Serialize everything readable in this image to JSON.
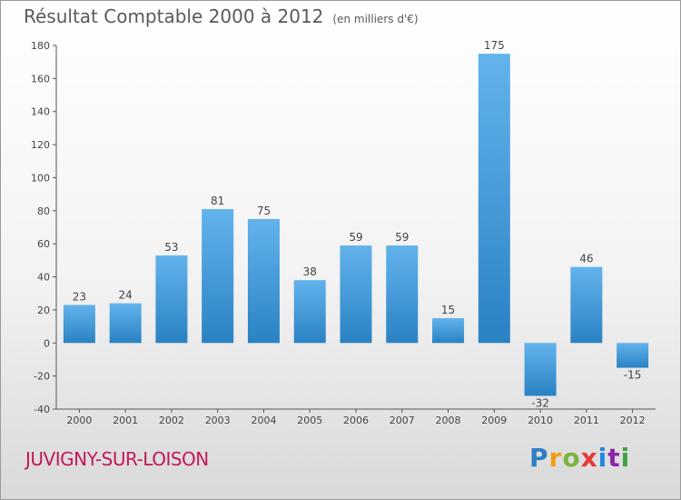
{
  "title": "Résultat Comptable 2000 à 2012",
  "unit_note": "(en milliers d'€)",
  "city": "JUVIGNY-SUR-LOISON",
  "logo": {
    "text": "Proxiti",
    "letter_colors": [
      "#2e7fc1",
      "#f39c12",
      "#7cb342",
      "#e53935",
      "#1e88e5",
      "#8e24aa",
      "#43a047"
    ]
  },
  "colors": {
    "bar_light": "#63b3ec",
    "bar_dark": "#2a82c3",
    "axis": "#555555",
    "text": "#444444"
  },
  "chart_data": {
    "type": "bar",
    "title": "Résultat Comptable 2000 à 2012",
    "xlabel": "",
    "ylabel": "",
    "categories": [
      "2000",
      "2001",
      "2002",
      "2003",
      "2004",
      "2005",
      "2006",
      "2007",
      "2008",
      "2009",
      "2010",
      "2011",
      "2012"
    ],
    "values": [
      23,
      24,
      53,
      81,
      75,
      38,
      59,
      59,
      15,
      175,
      -32,
      46,
      -15
    ],
    "data_labels": [
      "23",
      "24",
      "53",
      "81",
      "75",
      "38",
      "59",
      "59",
      "15",
      "175",
      "-32",
      "46",
      "-15"
    ],
    "ylim": [
      -40,
      180
    ],
    "yticks": [
      -40,
      -20,
      0,
      20,
      40,
      60,
      80,
      100,
      120,
      140,
      160,
      180
    ],
    "ytick_labels": [
      "-40",
      "-20",
      "0",
      "20",
      "40",
      "60",
      "80",
      "100",
      "120",
      "140",
      "160",
      "180"
    ],
    "grid": false,
    "legend": "none"
  }
}
